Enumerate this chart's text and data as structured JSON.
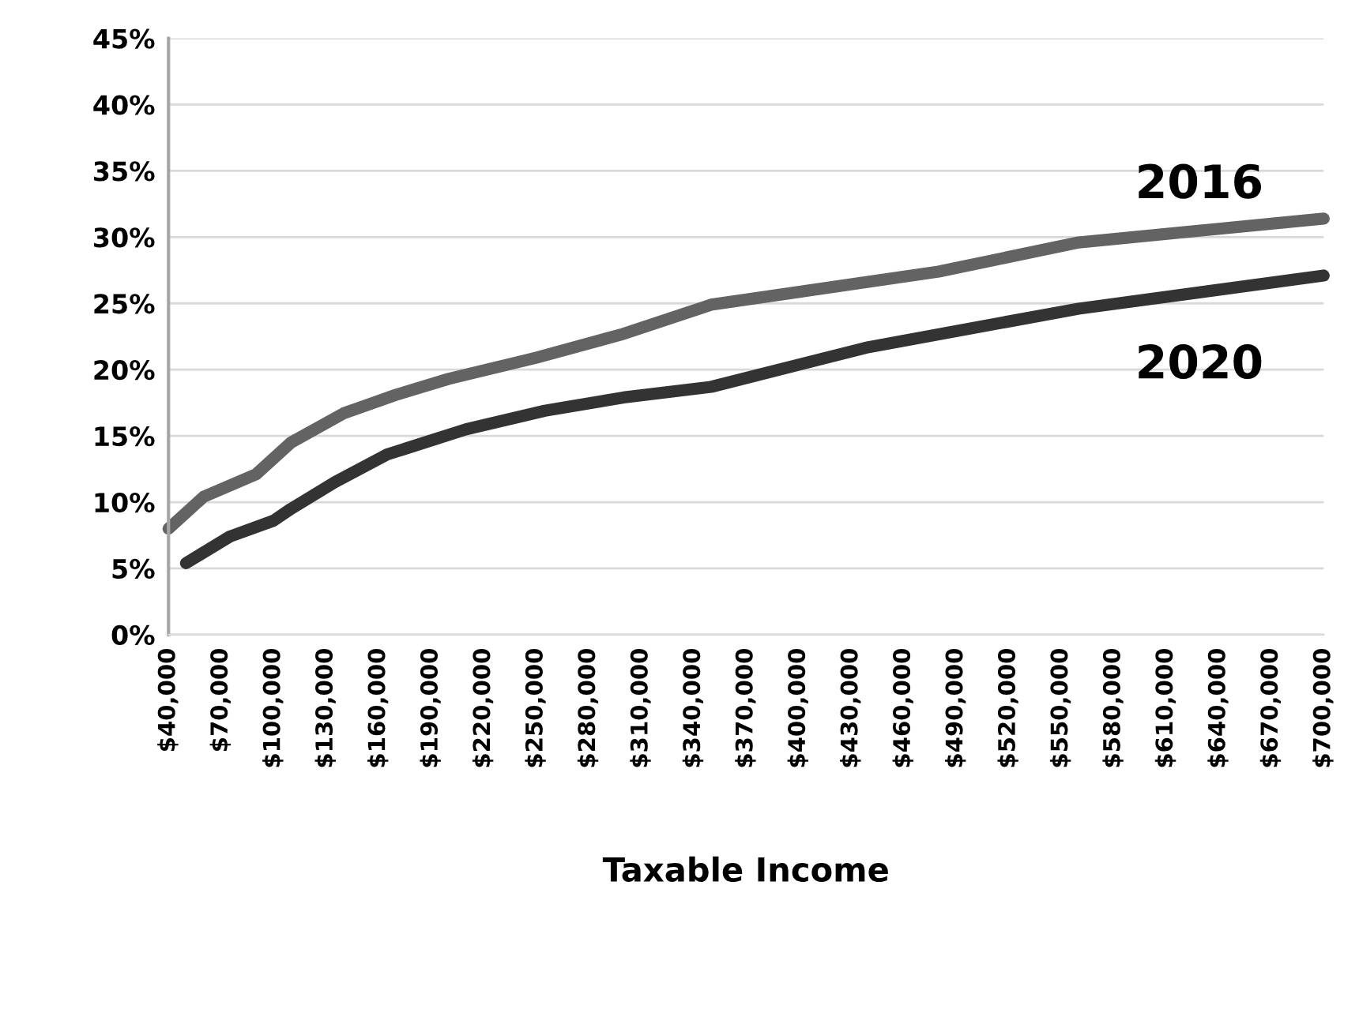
{
  "chart_data": {
    "type": "line",
    "xlabel": "Taxable Income",
    "xlim": [
      40000,
      700000
    ],
    "xticks": [
      {
        "value": 40000,
        "label": "$40,000"
      },
      {
        "value": 70000,
        "label": "$70,000"
      },
      {
        "value": 100000,
        "label": "$100,000"
      },
      {
        "value": 130000,
        "label": "$130,000"
      },
      {
        "value": 160000,
        "label": "$160,000"
      },
      {
        "value": 190000,
        "label": "$190,000"
      },
      {
        "value": 220000,
        "label": "$220,000"
      },
      {
        "value": 250000,
        "label": "$250,000"
      },
      {
        "value": 280000,
        "label": "$280,000"
      },
      {
        "value": 310000,
        "label": "$310,000"
      },
      {
        "value": 340000,
        "label": "$340,000"
      },
      {
        "value": 370000,
        "label": "$370,000"
      },
      {
        "value": 400000,
        "label": "$400,000"
      },
      {
        "value": 430000,
        "label": "$430,000"
      },
      {
        "value": 460000,
        "label": "$460,000"
      },
      {
        "value": 490000,
        "label": "$490,000"
      },
      {
        "value": 520000,
        "label": "$520,000"
      },
      {
        "value": 550000,
        "label": "$550,000"
      },
      {
        "value": 580000,
        "label": "$580,000"
      },
      {
        "value": 610000,
        "label": "$610,000"
      },
      {
        "value": 640000,
        "label": "$640,000"
      },
      {
        "value": 670000,
        "label": "$670,000"
      },
      {
        "value": 700000,
        "label": "$700,000"
      }
    ],
    "ylim": [
      0,
      45
    ],
    "yticks": [
      {
        "value": 0,
        "label": "0%"
      },
      {
        "value": 5,
        "label": "5%"
      },
      {
        "value": 10,
        "label": "10%"
      },
      {
        "value": 15,
        "label": "15%"
      },
      {
        "value": 20,
        "label": "20%"
      },
      {
        "value": 25,
        "label": "25%"
      },
      {
        "value": 30,
        "label": "30%"
      },
      {
        "value": 35,
        "label": "35%"
      },
      {
        "value": 40,
        "label": "40%"
      },
      {
        "value": 45,
        "label": "45%"
      }
    ],
    "grid": "y",
    "legend": false,
    "marker": "none",
    "line_style": "solid",
    "series": [
      {
        "name": "2016",
        "color": "#636363",
        "x": [
          40000,
          60000,
          90000,
          110000,
          140000,
          170000,
          200000,
          250000,
          300000,
          350000,
          480000,
          560000,
          700000
        ],
        "values": [
          8.0,
          10.4,
          12.1,
          14.5,
          16.7,
          18.1,
          19.3,
          20.9,
          22.7,
          24.9,
          27.4,
          29.6,
          31.4
        ]
      },
      {
        "name": "2020",
        "color": "#333333",
        "x": [
          50000,
          75000,
          100000,
          110000,
          135000,
          165000,
          210000,
          255000,
          300000,
          350000,
          440000,
          560000,
          700000
        ],
        "values": [
          5.4,
          7.4,
          8.6,
          9.5,
          11.5,
          13.6,
          15.5,
          16.9,
          17.9,
          18.7,
          21.7,
          24.6,
          27.1
        ]
      }
    ]
  }
}
